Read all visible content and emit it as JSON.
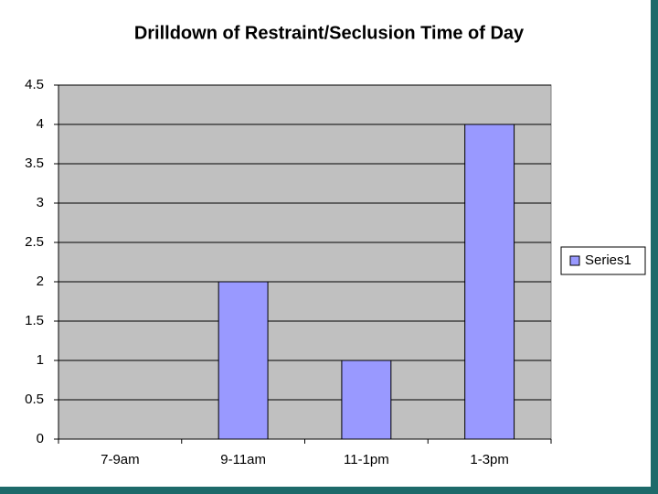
{
  "chart_data": {
    "type": "bar",
    "title": "Drilldown of Restraint/Seclusion Time of Day",
    "categories": [
      "7-9am",
      "9-11am",
      "11-1pm",
      "1-3pm"
    ],
    "series": [
      {
        "name": "Series1",
        "color": "#9999ff",
        "values": [
          0,
          2,
          1,
          4
        ]
      }
    ],
    "ylim": [
      0,
      4.5
    ],
    "yticks": [
      0,
      0.5,
      1,
      1.5,
      2,
      2.5,
      3,
      3.5,
      4,
      4.5
    ],
    "grid": true,
    "legend": "right"
  }
}
